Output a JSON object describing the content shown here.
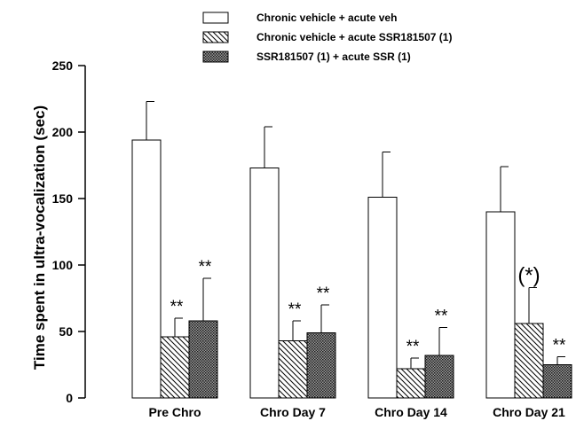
{
  "chart_data": {
    "type": "bar",
    "title": "",
    "xlabel": "",
    "ylabel": "Time spent in ultra-vocalization (sec)",
    "ylim": [
      0,
      250
    ],
    "yticks": [
      0,
      50,
      100,
      150,
      200,
      250
    ],
    "categories": [
      "Pre Chro",
      "Chro Day 7",
      "Chro Day 14",
      "Chro Day 21"
    ],
    "legend_position": "top",
    "grid": false,
    "series": [
      {
        "name": "Chronic vehicle + acute veh",
        "fill": "white",
        "values": [
          194,
          173,
          151,
          140
        ],
        "errors": [
          29,
          31,
          34,
          34
        ],
        "annotations": [
          "",
          "",
          "",
          ""
        ]
      },
      {
        "name": "Chronic vehicle + acute SSR181507 (1)",
        "fill": "hatch",
        "values": [
          46,
          43,
          22,
          56
        ],
        "errors": [
          14,
          15,
          8,
          27
        ],
        "annotations": [
          "**",
          "**",
          "**",
          "(*)"
        ]
      },
      {
        "name": "SSR181507 (1) + acute SSR (1)",
        "fill": "dots",
        "values": [
          58,
          49,
          32,
          25
        ],
        "errors": [
          32,
          21,
          21,
          6
        ],
        "annotations": [
          "**",
          "**",
          "**",
          "**"
        ]
      }
    ]
  }
}
